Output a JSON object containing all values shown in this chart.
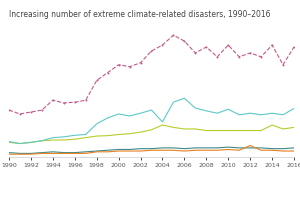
{
  "title": "Increasing number of extreme climate-related disasters, 1990–2016",
  "years": [
    1990,
    1991,
    1992,
    1993,
    1994,
    1995,
    1996,
    1997,
    1998,
    1999,
    2000,
    2001,
    2002,
    2003,
    2004,
    2005,
    2006,
    2007,
    2008,
    2009,
    2010,
    2011,
    2012,
    2013,
    2014,
    2015,
    2016
  ],
  "total_events": [
    120,
    110,
    115,
    120,
    145,
    138,
    140,
    145,
    195,
    215,
    235,
    230,
    240,
    270,
    285,
    310,
    295,
    265,
    280,
    255,
    285,
    255,
    265,
    255,
    285,
    235,
    280
  ],
  "flood": [
    40,
    35,
    38,
    42,
    50,
    52,
    56,
    58,
    85,
    100,
    110,
    105,
    112,
    120,
    90,
    140,
    150,
    125,
    118,
    112,
    122,
    108,
    112,
    108,
    112,
    108,
    124
  ],
  "storm": [
    38,
    35,
    38,
    42,
    44,
    44,
    46,
    50,
    54,
    55,
    58,
    60,
    64,
    70,
    82,
    76,
    72,
    72,
    68,
    68,
    68,
    68,
    68,
    68,
    82,
    72,
    76
  ],
  "drought": [
    12,
    10,
    10,
    12,
    14,
    12,
    12,
    14,
    16,
    18,
    20,
    20,
    22,
    22,
    24,
    24,
    22,
    24,
    24,
    24,
    26,
    24,
    24,
    24,
    22,
    22,
    24
  ],
  "extreme_temp": [
    8,
    8,
    8,
    10,
    10,
    10,
    10,
    10,
    14,
    14,
    16,
    16,
    16,
    18,
    18,
    18,
    16,
    18,
    18,
    18,
    20,
    18,
    30,
    18,
    18,
    16,
    16
  ],
  "colors": {
    "total_events": "#c45a8a",
    "flood": "#5cc8c8",
    "storm": "#b8cc28",
    "drought": "#3a8888",
    "extreme_temp": "#e88020"
  },
  "ylim": [
    0,
    340
  ],
  "background": "#ffffff",
  "title_color": "#444444",
  "title_fontsize": 5.5,
  "tick_fontsize": 4.5,
  "xticks": [
    1990,
    1992,
    1994,
    1996,
    1998,
    2000,
    2002,
    2004,
    2006,
    2008,
    2010,
    2012,
    2014,
    2016
  ]
}
